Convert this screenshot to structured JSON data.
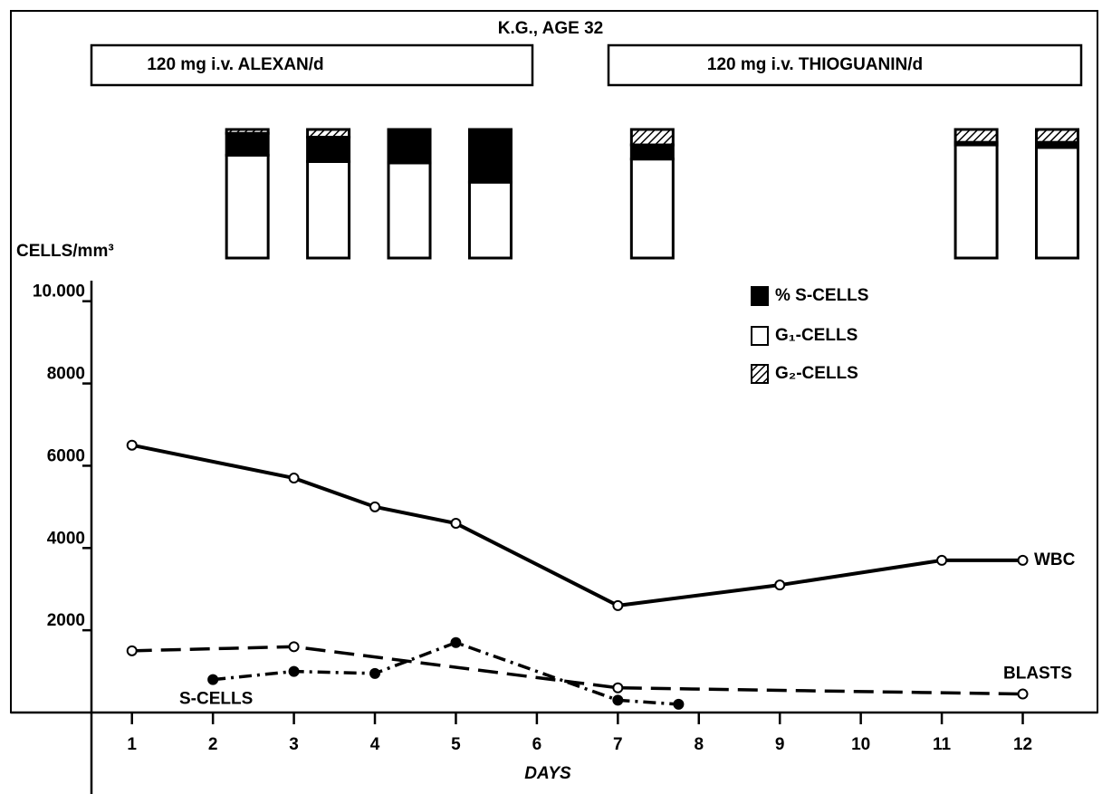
{
  "chart_data": [
    {
      "type": "line",
      "title": "K.G., AGE 32",
      "annotations": [
        "120 mg i.v. ALEXAN/d",
        "120 mg i.v. THIOGUANIN/d"
      ],
      "xlabel": "DAYS",
      "ylabel": "CELLS/mm³",
      "xlim": [
        0.5,
        12.9
      ],
      "xticks": [
        1,
        2,
        3,
        4,
        5,
        6,
        7,
        8,
        9,
        10,
        11,
        12
      ],
      "ylim": [
        0,
        10500
      ],
      "yticks": [
        2000,
        4000,
        6000,
        8000,
        {
          "value": 10000,
          "label": "10.000"
        }
      ],
      "series": [
        {
          "name": "WBC",
          "color": "#000000",
          "style": "solid",
          "marker": "open",
          "x": [
            1,
            3,
            4,
            5,
            7,
            9,
            11,
            12
          ],
          "values": [
            6500,
            5700,
            5000,
            4600,
            2600,
            3100,
            3700,
            3700
          ]
        },
        {
          "name": "BLASTS",
          "color": "#000000",
          "style": "dashed",
          "marker": "open",
          "x": [
            1,
            3,
            7,
            12
          ],
          "values": [
            1500,
            1600,
            600,
            450
          ]
        },
        {
          "name": "S-CELLS",
          "color": "#000000",
          "style": "dashdot",
          "marker": "filled",
          "x": [
            2,
            3,
            4,
            5,
            7,
            7.75
          ],
          "values": [
            800,
            1000,
            950,
            1700,
            300,
            200
          ]
        }
      ]
    },
    {
      "type": "stacked_bar",
      "x": [
        2,
        3,
        4,
        5,
        7,
        11,
        12
      ],
      "ylim": [
        0,
        100
      ],
      "series": [
        {
          "name": "% S-CELLS",
          "color": "#000000",
          "values": [
            17,
            19,
            26,
            41,
            11,
            2,
            4
          ]
        },
        {
          "name": "G₁-CELLS",
          "color": "#ffffff",
          "values": [
            80,
            75,
            74,
            59,
            77,
            88,
            86
          ]
        },
        {
          "name": "G₂-CELLS",
          "color": "hatch",
          "values": [
            3,
            6,
            0,
            0,
            12,
            10,
            10
          ]
        }
      ]
    }
  ]
}
